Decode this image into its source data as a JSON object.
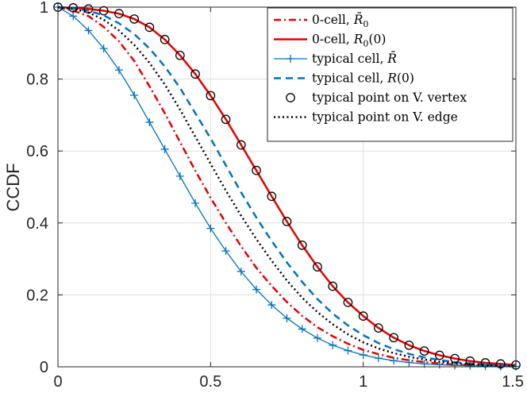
{
  "chart_data": {
    "type": "line",
    "title": "",
    "xlabel": "",
    "ylabel": "CCDF",
    "xlim": [
      0,
      1.5
    ],
    "ylim": [
      0,
      1
    ],
    "grid": true,
    "legend_position": "top-right",
    "x_ticks": [
      0,
      0.5,
      1,
      1.5
    ],
    "x_tick_labels": [
      "0",
      "0.5",
      "1",
      "1.5"
    ],
    "y_ticks": [
      0,
      0.2,
      0.4,
      0.6,
      0.8,
      1
    ],
    "y_tick_labels": [
      "0",
      "0.2",
      "0.4",
      "0.6",
      "0.8",
      "1"
    ],
    "x": [
      0,
      0.05,
      0.1,
      0.15,
      0.2,
      0.25,
      0.3,
      0.35,
      0.4,
      0.45,
      0.5,
      0.55,
      0.6,
      0.65,
      0.7,
      0.75,
      0.8,
      0.85,
      0.9,
      0.95,
      1.0,
      1.05,
      1.1,
      1.15,
      1.2,
      1.25,
      1.3,
      1.35,
      1.4,
      1.45,
      1.5
    ],
    "series": [
      {
        "name": "0-cell, R̄₀",
        "legend_main": "0-cell, ",
        "legend_sym": "R̄",
        "legend_sub": "0",
        "legend_tail": "",
        "color": "#e60000",
        "style": "dashdot",
        "width": 2.5,
        "marker": "none",
        "values": [
          1.0,
          0.99,
          0.975,
          0.945,
          0.905,
          0.85,
          0.78,
          0.705,
          0.625,
          0.545,
          0.47,
          0.4,
          0.335,
          0.275,
          0.225,
          0.18,
          0.142,
          0.11,
          0.085,
          0.064,
          0.047,
          0.035,
          0.025,
          0.018,
          0.013,
          0.009,
          0.006,
          0.004,
          0.003,
          0.002,
          0.001
        ]
      },
      {
        "name": "0-cell, R₀(0)",
        "legend_main": "0-cell, ",
        "legend_sym": "R",
        "legend_sub": "0",
        "legend_tail": "(0)",
        "color": "#e60000",
        "style": "solid",
        "width": 2.5,
        "marker": "none",
        "values": [
          1.0,
          0.998,
          0.995,
          0.99,
          0.982,
          0.967,
          0.944,
          0.91,
          0.866,
          0.814,
          0.754,
          0.688,
          0.617,
          0.546,
          0.474,
          0.404,
          0.338,
          0.278,
          0.224,
          0.179,
          0.141,
          0.108,
          0.081,
          0.06,
          0.044,
          0.032,
          0.023,
          0.016,
          0.011,
          0.008,
          0.005
        ]
      },
      {
        "name": "typical cell, R̄",
        "legend_main": "typical cell, ",
        "legend_sym": "R̄",
        "legend_sub": "",
        "legend_tail": "",
        "color": "#0072bd",
        "style": "solid",
        "width": 1.3,
        "marker": "plus",
        "values": [
          1.0,
          0.975,
          0.935,
          0.885,
          0.825,
          0.755,
          0.68,
          0.605,
          0.53,
          0.455,
          0.385,
          0.322,
          0.265,
          0.215,
          0.172,
          0.135,
          0.105,
          0.08,
          0.06,
          0.045,
          0.033,
          0.024,
          0.017,
          0.012,
          0.008,
          0.006,
          0.004,
          0.003,
          0.002,
          0.001,
          0.001
        ]
      },
      {
        "name": "typical cell, R(0)",
        "legend_main": "typical cell, ",
        "legend_sym": "R",
        "legend_sub": "",
        "legend_tail": "(0)",
        "color": "#0072bd",
        "style": "dashed",
        "width": 2.5,
        "marker": "none",
        "values": [
          1.0,
          0.997,
          0.99,
          0.977,
          0.955,
          0.925,
          0.885,
          0.835,
          0.775,
          0.705,
          0.635,
          0.56,
          0.485,
          0.415,
          0.35,
          0.29,
          0.236,
          0.188,
          0.148,
          0.115,
          0.088,
          0.066,
          0.049,
          0.036,
          0.026,
          0.019,
          0.013,
          0.009,
          0.006,
          0.004,
          0.003
        ]
      },
      {
        "name": "typical point on V. vertex",
        "legend_main": "typical point on V. vertex",
        "legend_sym": "",
        "legend_sub": "",
        "legend_tail": "",
        "color": "#000000",
        "style": "none",
        "width": 1.3,
        "marker": "circle",
        "values": [
          1.0,
          0.998,
          0.995,
          0.99,
          0.982,
          0.967,
          0.944,
          0.91,
          0.866,
          0.814,
          0.754,
          0.688,
          0.617,
          0.546,
          0.474,
          0.404,
          0.338,
          0.278,
          0.224,
          0.179,
          0.141,
          0.108,
          0.081,
          0.06,
          0.044,
          0.032,
          0.023,
          0.016,
          0.011,
          0.008,
          0.005
        ]
      },
      {
        "name": "typical point on V. edge",
        "legend_main": "typical point on V. edge",
        "legend_sym": "",
        "legend_sub": "",
        "legend_tail": "",
        "color": "#000000",
        "style": "dotted",
        "width": 2.5,
        "marker": "none",
        "values": [
          1.0,
          0.995,
          0.985,
          0.965,
          0.935,
          0.895,
          0.845,
          0.785,
          0.715,
          0.64,
          0.565,
          0.49,
          0.42,
          0.355,
          0.295,
          0.24,
          0.192,
          0.152,
          0.118,
          0.09,
          0.068,
          0.051,
          0.038,
          0.028,
          0.02,
          0.014,
          0.01,
          0.007,
          0.005,
          0.003,
          0.002
        ]
      }
    ]
  }
}
